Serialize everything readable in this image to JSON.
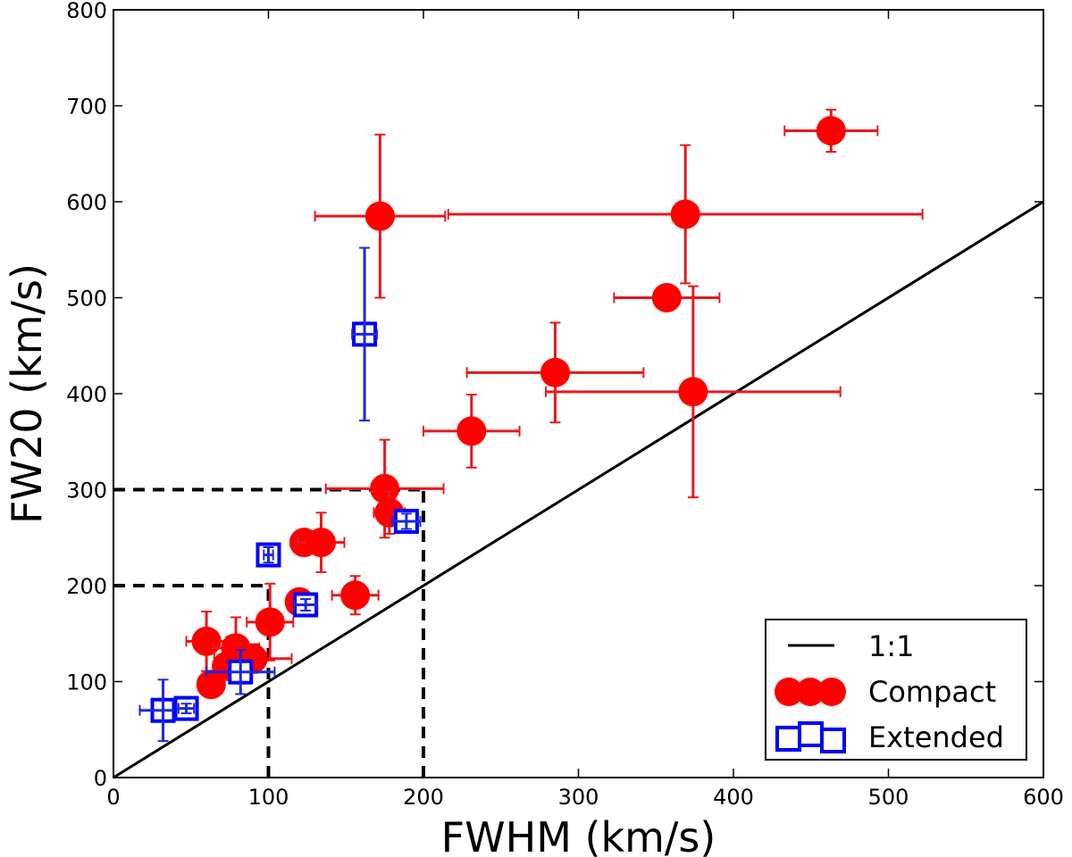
{
  "chart_data": {
    "type": "scatter",
    "title": "",
    "xlabel": "FWHM (km/s)",
    "ylabel": "FW20 (km/s)",
    "xlim": [
      0,
      600
    ],
    "ylim": [
      0,
      800
    ],
    "xticks": [
      0,
      100,
      200,
      300,
      400,
      500,
      600
    ],
    "yticks": [
      0,
      100,
      200,
      300,
      400,
      500,
      600,
      700,
      800
    ],
    "grid": false,
    "legend_position": "bottom-right",
    "colors": {
      "compact": "#ff0000",
      "compact_error": "#e8191c",
      "extended": "#0000ff",
      "extended_error": "#1e28dc",
      "line": "#000000"
    },
    "reference_line": {
      "name": "1:1",
      "from": [
        0,
        0
      ],
      "to": [
        600,
        600
      ]
    },
    "threshold_lines": [
      {
        "x": 100,
        "y": 200
      },
      {
        "x": 200,
        "y": 300
      }
    ],
    "series": [
      {
        "name": "Compact",
        "marker": "circle",
        "points": [
          {
            "x": 463,
            "y": 674,
            "xerr": 30,
            "yerr": 22
          },
          {
            "x": 172,
            "y": 585,
            "xerr": 42,
            "yerr": 85
          },
          {
            "x": 369,
            "y": 587,
            "xerr": 153,
            "yerr": 72
          },
          {
            "x": 357,
            "y": 500,
            "xerr": 34,
            "yerr": 0
          },
          {
            "x": 285,
            "y": 422,
            "xerr": 57,
            "yerr": 52
          },
          {
            "x": 374,
            "y": 402,
            "xerr": 95,
            "yerr": 110
          },
          {
            "x": 231,
            "y": 361,
            "xerr": 31,
            "yerr": 38
          },
          {
            "x": 175,
            "y": 301,
            "xerr": 38,
            "yerr": 51
          },
          {
            "x": 178,
            "y": 276,
            "xerr": 10,
            "yerr": 22
          },
          {
            "x": 123,
            "y": 245,
            "xerr": 7,
            "yerr": 10
          },
          {
            "x": 134,
            "y": 245,
            "xerr": 15,
            "yerr": 31
          },
          {
            "x": 156,
            "y": 190,
            "xerr": 15,
            "yerr": 20
          },
          {
            "x": 120,
            "y": 183,
            "xerr": 7,
            "yerr": 8
          },
          {
            "x": 101,
            "y": 162,
            "xerr": 15,
            "yerr": 40
          },
          {
            "x": 60,
            "y": 142,
            "xerr": 13,
            "yerr": 31
          },
          {
            "x": 79,
            "y": 135,
            "xerr": 15,
            "yerr": 32
          },
          {
            "x": 90,
            "y": 124,
            "xerr": 25,
            "yerr": 15
          },
          {
            "x": 73,
            "y": 116,
            "xerr": 5,
            "yerr": 10
          },
          {
            "x": 63,
            "y": 97,
            "xerr": 5,
            "yerr": 10
          }
        ]
      },
      {
        "name": "Extended",
        "marker": "square",
        "points": [
          {
            "x": 162,
            "y": 462,
            "xerr": 8,
            "yerr": 90
          },
          {
            "x": 189,
            "y": 267,
            "xerr": 9,
            "yerr": 8
          },
          {
            "x": 100,
            "y": 232,
            "xerr": 3,
            "yerr": 8
          },
          {
            "x": 124,
            "y": 180,
            "xerr": 7,
            "yerr": 6
          },
          {
            "x": 82,
            "y": 110,
            "xerr": 22,
            "yerr": 23
          },
          {
            "x": 32,
            "y": 70,
            "xerr": 15,
            "yerr": 32
          },
          {
            "x": 47,
            "y": 72,
            "xerr": 5,
            "yerr": 5
          }
        ]
      }
    ]
  }
}
